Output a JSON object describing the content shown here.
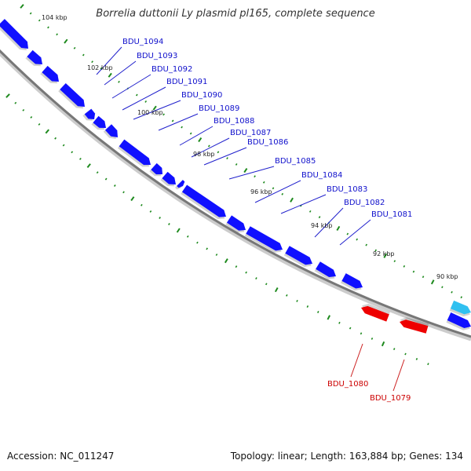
{
  "title": "Borrelia duttonii Ly plasmid pl165, complete sequence",
  "footer": {
    "accession": "Accession: NC_011247",
    "summary": "Topology: linear; Length: 163,884 bp; Genes: 134"
  },
  "colors": {
    "forward_gene": "#1010ff",
    "reverse_gene": "#ee0000",
    "other_feature": "#30c0f0",
    "backbone": "#777777",
    "tick": "#1e8a1e",
    "forward_label": "#1010cc",
    "reverse_label": "#cc0000"
  },
  "scale_ticks": [
    "104 kbp",
    "102 kbp",
    "100 kbp",
    "98 kbp",
    "96 kbp",
    "94 kbp",
    "92 kbp",
    "90 kbp"
  ],
  "forward_genes": [
    "BDU_1094",
    "BDU_1093",
    "BDU_1092",
    "BDU_1091",
    "BDU_1090",
    "BDU_1089",
    "BDU_1088",
    "BDU_1087",
    "BDU_1086",
    "BDU_1085",
    "BDU_1084",
    "BDU_1083",
    "BDU_1082",
    "BDU_1081"
  ],
  "reverse_genes": [
    "BDU_1080",
    "BDU_1079"
  ]
}
